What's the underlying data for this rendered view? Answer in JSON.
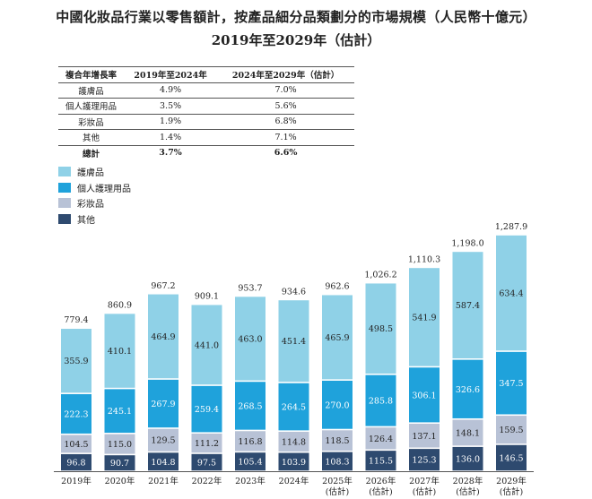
{
  "title": "中國化妝品行業以零售額計，按產品細分品類劃分的市場規模（人民幣十億元）",
  "subtitle": "2019年至2029年（估計）",
  "cagr_table": {
    "headers": [
      "複合年增長率",
      "2019年至2024年",
      "2024年至2029年（估計）"
    ],
    "rows": [
      [
        "護膚品",
        "4.9%",
        "7.0%"
      ],
      [
        "個人護理用品",
        "3.5%",
        "5.6%"
      ],
      [
        "彩妝品",
        "1.9%",
        "6.8%"
      ],
      [
        "其他",
        "1.4%",
        "7.1%"
      ]
    ],
    "total": [
      "總計",
      "3.7%",
      "6.6%"
    ]
  },
  "chart_data": {
    "type": "bar",
    "stacked": true,
    "categories": [
      "2019年",
      "2020年",
      "2021年",
      "2022年",
      "2023年",
      "2024年",
      "2025年\n(估計)",
      "2026年\n(估計)",
      "2027年\n(估計)",
      "2028年\n(估計)",
      "2029年\n(估計)"
    ],
    "series": [
      {
        "name": "其他",
        "color": "#2e4a6f",
        "label_color": "#ffffff",
        "values": [
          96.8,
          90.7,
          104.8,
          97.5,
          105.4,
          103.9,
          108.3,
          115.5,
          125.3,
          136.0,
          146.5
        ]
      },
      {
        "name": "彩妝品",
        "color": "#b8c2d6",
        "label_color": "#222222",
        "values": [
          104.5,
          115.0,
          129.5,
          111.2,
          116.8,
          114.8,
          118.5,
          126.4,
          137.1,
          148.1,
          159.5
        ]
      },
      {
        "name": "個人護理用品",
        "color": "#1fa2db",
        "label_color": "#ffffff",
        "values": [
          222.3,
          245.1,
          267.9,
          259.4,
          268.5,
          264.5,
          270.0,
          285.8,
          306.1,
          326.6,
          347.5
        ]
      },
      {
        "name": "護膚品",
        "color": "#8fd1e7",
        "label_color": "#222222",
        "values": [
          355.9,
          410.1,
          464.9,
          441.0,
          463.0,
          451.4,
          465.9,
          498.5,
          541.9,
          587.4,
          634.4
        ]
      }
    ],
    "totals": [
      "779.4",
      "860.9",
      "967.2",
      "909.1",
      "953.7",
      "934.6",
      "962.6",
      "1,026.2",
      "1,110.3",
      "1,198.0",
      "1,287.9"
    ],
    "legend_order": [
      "護膚品",
      "個人護理用品",
      "彩妝品",
      "其他"
    ],
    "legend_position": "top-left",
    "grid": false
  }
}
